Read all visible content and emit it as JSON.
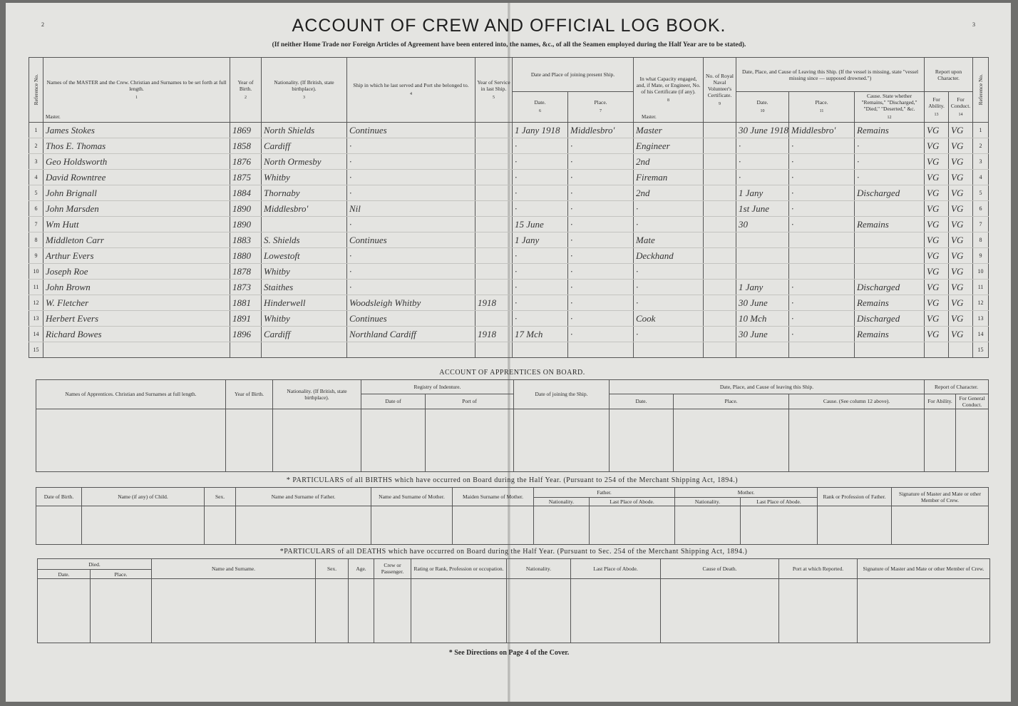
{
  "header": {
    "page_left": "2",
    "page_right": "3",
    "title": "ACCOUNT OF CREW AND OFFICIAL LOG BOOK.",
    "subtitle": "(If neither Home Trade nor Foreign Articles of Agreement have been entered into, the names, &c., of all the Seamen employed during the Half Year are to be stated)."
  },
  "crew": {
    "master_notes": [
      "Master.",
      "Master."
    ],
    "columns": [
      {
        "label": "Reference No."
      },
      {
        "label": "Names of the MASTER and the Crew. Christian and Surnames to be set forth at full length.",
        "num": "1"
      },
      {
        "label": "Year of Birth.",
        "num": "2"
      },
      {
        "label": "Nationality. (If British, state birthplace).",
        "num": "3"
      },
      {
        "label": "Ship in which he last served and Port she belonged to.",
        "num": "4"
      },
      {
        "label": "Year of Service in last Ship.",
        "num": "5"
      },
      {
        "label": "Date and Place of joining present Ship.",
        "sub": [
          {
            "label": "Date.",
            "num": "6"
          },
          {
            "label": "Place.",
            "num": "7"
          }
        ]
      },
      {
        "label": "In what Capacity engaged, and, if Mate, or Engineer, No. of his Certificate (if any).",
        "num": "8"
      },
      {
        "label": "No. of Royal Naval Volunteer's Certificate.",
        "num": "9"
      },
      {
        "label": "Date, Place, and Cause of Leaving this Ship. (If the vessel is missing, state \"vessel missing since — supposed drowned.\")",
        "sub": [
          {
            "label": "Date.",
            "num": "10"
          },
          {
            "label": "Place.",
            "num": "11"
          },
          {
            "label": "Cause. State whether \"Remains,\" \"Discharged,\" \"Died,\" \"Deserted,\" &c.",
            "num": "12"
          }
        ]
      },
      {
        "label": "Report upon Character.",
        "sub": [
          {
            "label": "For Ability.",
            "num": "13"
          },
          {
            "label": "For Conduct.",
            "num": "14"
          }
        ]
      },
      {
        "label": "Reference No."
      }
    ],
    "rows": [
      [
        "1",
        "James Stokes",
        "1869",
        "North Shields",
        "Continues",
        null,
        "1 Jany 1918",
        "Middlesbro'",
        "Master",
        null,
        "30 June 1918",
        "Middlesbro'",
        "Remains",
        "VG",
        "VG",
        "1"
      ],
      [
        "2",
        "Thos E. Thomas",
        "1858",
        "Cardiff",
        "·",
        null,
        "·",
        "·",
        "Engineer",
        null,
        "·",
        "·",
        "·",
        "VG",
        "VG",
        "2"
      ],
      [
        "3",
        "Geo Holdsworth",
        "1876",
        "North Ormesby",
        "·",
        null,
        "·",
        "·",
        "2nd",
        null,
        "·",
        "·",
        "·",
        "VG",
        "VG",
        "3"
      ],
      [
        "4",
        "David Rowntree",
        "1875",
        "Whitby",
        "·",
        null,
        "·",
        "·",
        "Fireman",
        null,
        "·",
        "·",
        "·",
        "VG",
        "VG",
        "4"
      ],
      [
        "5",
        "John Brignall",
        "1884",
        "Thornaby",
        "·",
        null,
        "·",
        "·",
        "2nd",
        null,
        "1 Jany",
        "·",
        "Discharged",
        "VG",
        "VG",
        "5"
      ],
      [
        "6",
        "John Marsden",
        "1890",
        "Middlesbro'",
        "Nil",
        null,
        "·",
        "·",
        "·",
        null,
        "1st June",
        "·",
        null,
        "VG",
        "VG",
        "6"
      ],
      [
        "7",
        "Wm Hutt",
        "1890",
        null,
        "·",
        null,
        "15 June",
        "·",
        "·",
        null,
        "30",
        "·",
        "Remains",
        "VG",
        "VG",
        "7"
      ],
      [
        "8",
        "Middleton Carr",
        "1883",
        "S. Shields",
        "Continues",
        null,
        "1 Jany",
        "·",
        "Mate",
        null,
        null,
        null,
        null,
        "VG",
        "VG",
        "8"
      ],
      [
        "9",
        "Arthur Evers",
        "1880",
        "Lowestoft",
        "·",
        null,
        "·",
        "·",
        "Deckhand",
        null,
        null,
        null,
        null,
        "VG",
        "VG",
        "9"
      ],
      [
        "10",
        "Joseph Roe",
        "1878",
        "Whitby",
        "·",
        null,
        "·",
        "·",
        "·",
        null,
        null,
        null,
        null,
        "VG",
        "VG",
        "10"
      ],
      [
        "11",
        "John Brown",
        "1873",
        "Staithes",
        "·",
        null,
        "·",
        "·",
        "·",
        null,
        "1 Jany",
        "·",
        "Discharged",
        "VG",
        "VG",
        "11"
      ],
      [
        "12",
        "W. Fletcher",
        "1881",
        "Hinderwell",
        "Woodsleigh Whitby",
        "1918",
        "·",
        "·",
        "·",
        null,
        "30 June",
        "·",
        "Remains",
        "VG",
        "VG",
        "12"
      ],
      [
        "13",
        "Herbert Evers",
        "1891",
        "Whitby",
        "Continues",
        null,
        "·",
        "·",
        "Cook",
        null,
        "10 Mch",
        "·",
        "Discharged",
        "VG",
        "VG",
        "13"
      ],
      [
        "14",
        "Richard Bowes",
        "1896",
        "Cardiff",
        "Northland Cardiff",
        "1918",
        "17 Mch",
        "·",
        "·",
        null,
        "30 June",
        "·",
        "Remains",
        "VG",
        "VG",
        "14"
      ],
      [
        "15",
        null,
        null,
        null,
        null,
        null,
        null,
        null,
        null,
        null,
        null,
        null,
        null,
        null,
        null,
        "15"
      ]
    ]
  },
  "apprentices": {
    "title": "ACCOUNT OF APPRENTICES ON BOARD.",
    "columns": [
      {
        "label": "Names of Apprentices. Christian and Surnames at full length."
      },
      {
        "label": "Year of Birth."
      },
      {
        "label": "Nationality. (If British, state birthplace)."
      },
      {
        "label": "Registry of Indenture.",
        "sub": [
          {
            "label": "Date of"
          },
          {
            "label": "Port of"
          }
        ]
      },
      {
        "label": "Date of joining the Ship."
      },
      {
        "label": "Date, Place, and Cause of leaving this Ship.",
        "sub": [
          {
            "label": "Date."
          },
          {
            "label": "Place."
          },
          {
            "label": "Cause. (See column 12 above)."
          }
        ]
      },
      {
        "label": "Report of Character.",
        "sub": [
          {
            "label": "For Ability."
          },
          {
            "label": "For General Conduct."
          }
        ]
      }
    ]
  },
  "births": {
    "title": "* PARTICULARS of all BIRTHS which have occurred on Board during the Half Year. (Pursuant to 254 of the Merchant Shipping Act, 1894.)",
    "columns": [
      {
        "label": "Date of Birth."
      },
      {
        "label": "Name (if any) of Child."
      },
      {
        "label": "Sex."
      },
      {
        "label": "Name and Surname of Father."
      },
      {
        "label": "Name and Surname of Mother."
      },
      {
        "label": "Maiden Surname of Mother."
      },
      {
        "label": "Father.",
        "sub": [
          {
            "label": "Nationality."
          },
          {
            "label": "Last Place of Abode."
          }
        ]
      },
      {
        "label": "Mother.",
        "sub": [
          {
            "label": "Nationality."
          },
          {
            "label": "Last Place of Abode."
          }
        ]
      },
      {
        "label": "Rank or Profession of Father."
      },
      {
        "label": "Signature of Master and Mate or other Member of Crew."
      }
    ]
  },
  "deaths": {
    "title": "*PARTICULARS of all DEATHS which have occurred on Board during the Half Year. (Pursuant to Sec. 254 of the Merchant Shipping Act, 1894.)",
    "columns": [
      {
        "label": "Died.",
        "sub": [
          {
            "label": "Date."
          },
          {
            "label": "Place."
          }
        ]
      },
      {
        "label": "Name and Surname."
      },
      {
        "label": "Sex."
      },
      {
        "label": "Age."
      },
      {
        "label": "Crew or Passenger."
      },
      {
        "label": "Rating or Rank, Profession or occupation."
      },
      {
        "label": "Nationality."
      },
      {
        "label": "Last Place of Abode."
      },
      {
        "label": "Cause of Death."
      },
      {
        "label": "Port at which Reported."
      },
      {
        "label": "Signature of Master and Mate or other Member of Crew."
      }
    ]
  },
  "footer": {
    "note": "* See Directions on Page 4 of the Cover."
  }
}
